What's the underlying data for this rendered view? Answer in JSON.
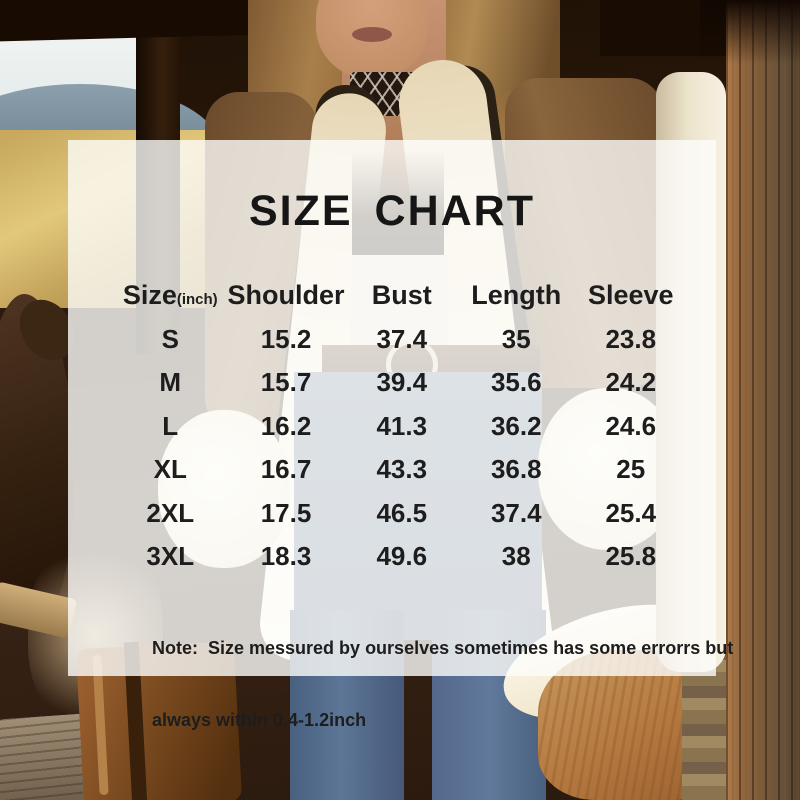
{
  "chart_data": {
    "type": "table",
    "title": "SIZE CHART",
    "unit": "inch",
    "columns": [
      "Size(inch)",
      "Shoulder",
      "Bust",
      "Length",
      "Sleeve"
    ],
    "rows": [
      [
        "S",
        15.2,
        37.4,
        35,
        23.8
      ],
      [
        "M",
        15.7,
        39.4,
        35.6,
        24.2
      ],
      [
        "L",
        16.2,
        41.3,
        36.2,
        24.6
      ],
      [
        "XL",
        16.7,
        43.3,
        36.8,
        25
      ],
      [
        "2XL",
        17.5,
        46.5,
        37.4,
        25.4
      ],
      [
        "3XL",
        18.3,
        49.6,
        38,
        25.8
      ]
    ],
    "note": "Note:  Size messured by ourselves sometimes has some errorrs but always within 0.4-1.2inch"
  },
  "panel": {
    "title": "SIZE CHART",
    "header_size_label": "Size",
    "header_size_unit": "(inch)",
    "note_line1": "Note:  Size messured by ourselves sometimes has some errorrs but",
    "note_line2": "always within 0.4-1.2inch"
  },
  "colors": {
    "text": "#1d1d1d",
    "overlay_bg": "rgba(253,252,250,0.8)"
  }
}
